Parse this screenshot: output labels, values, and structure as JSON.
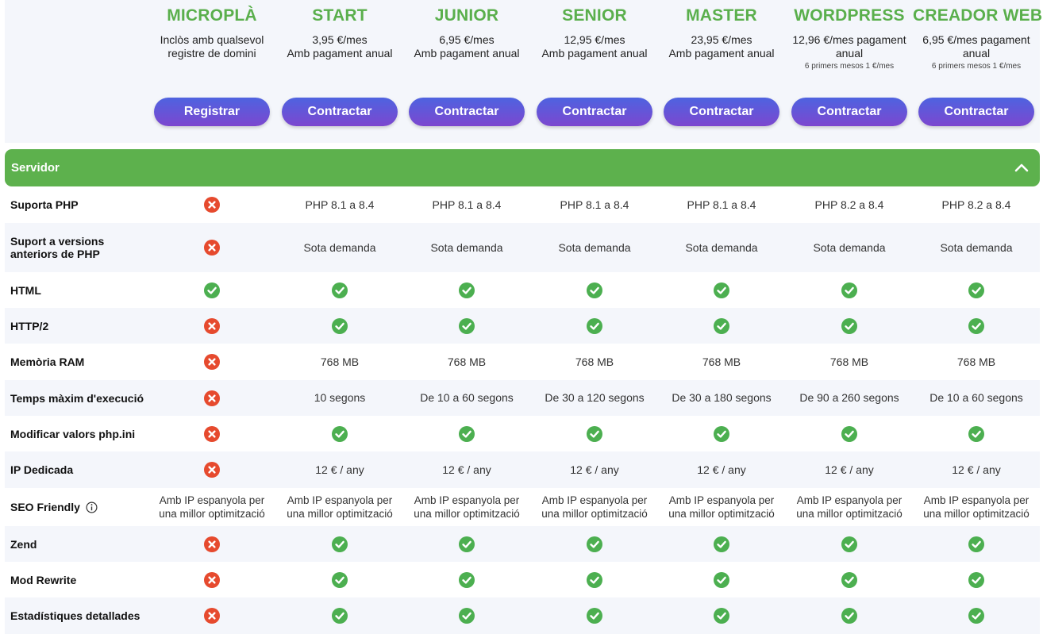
{
  "plans": [
    {
      "name": "MICROPLÀ",
      "price": "Inclòs amb qualsevol",
      "price2": "registre de domini",
      "sub": "",
      "button": "Registrar"
    },
    {
      "name": "START",
      "price": "3,95 €/mes",
      "price2": "Amb pagament anual",
      "sub": "",
      "button": "Contractar"
    },
    {
      "name": "JUNIOR",
      "price": "6,95 €/mes",
      "price2": "Amb pagament anual",
      "sub": "",
      "button": "Contractar"
    },
    {
      "name": "SENIOR",
      "price": "12,95 €/mes",
      "price2": "Amb pagament anual",
      "sub": "",
      "button": "Contractar"
    },
    {
      "name": "MASTER",
      "price": "23,95 €/mes",
      "price2": "Amb pagament anual",
      "sub": "",
      "button": "Contractar"
    },
    {
      "name": "WORDPRESS",
      "price": "12,96 €/mes pagament",
      "price2": "anual",
      "sub": "6 primers mesos 1 €/mes",
      "button": "Contractar"
    },
    {
      "name": "CREADOR WEB",
      "price": "6,95 €/mes pagament",
      "price2": "anual",
      "sub": "6 primers mesos 1 €/mes",
      "button": "Contractar"
    }
  ],
  "section": {
    "title": "Servidor",
    "toggle_icon": "chevron-up-icon"
  },
  "colors": {
    "plan_name": "#5aaf4c",
    "section_bar": "#5db14d",
    "check": "#4caf50",
    "cross": "#e64a2e",
    "button_top": "#4e63e0",
    "button_bottom": "#7c47cf"
  },
  "rows": [
    {
      "label": "Suporta PHP",
      "cells": [
        "x",
        "PHP 8.1 a 8.4",
        "PHP 8.1 a 8.4",
        "PHP 8.1 a 8.4",
        "PHP 8.1 a 8.4",
        "PHP 8.2 a 8.4",
        "PHP 8.2 a 8.4"
      ]
    },
    {
      "label": "Suport a versions anteriors de PHP",
      "cells": [
        "x",
        "Sota demanda",
        "Sota demanda",
        "Sota demanda",
        "Sota demanda",
        "Sota demanda",
        "Sota demanda"
      ]
    },
    {
      "label": "HTML",
      "cells": [
        "check",
        "check",
        "check",
        "check",
        "check",
        "check",
        "check"
      ]
    },
    {
      "label": "HTTP/2",
      "cells": [
        "x",
        "check",
        "check",
        "check",
        "check",
        "check",
        "check"
      ]
    },
    {
      "label": "Memòria RAM",
      "cells": [
        "x",
        "768 MB",
        "768 MB",
        "768 MB",
        "768 MB",
        "768 MB",
        "768 MB"
      ]
    },
    {
      "label": "Temps màxim d'execució",
      "cells": [
        "x",
        "10 segons",
        "De 10 a 60 segons",
        "De 30 a 120 segons",
        "De 30 a 180 segons",
        "De 90 a 260 segons",
        "De 10 a 60 segons"
      ]
    },
    {
      "label": "Modificar valors php.ini",
      "cells": [
        "x",
        "check",
        "check",
        "check",
        "check",
        "check",
        "check"
      ]
    },
    {
      "label": "IP Dedicada",
      "cells": [
        "x",
        "12 € / any",
        "12 € / any",
        "12 € / any",
        "12 € / any",
        "12 € / any",
        "12 € / any"
      ]
    },
    {
      "label": "SEO Friendly",
      "info": true,
      "cells": [
        "Amb IP espanyola per una millor optimització",
        "Amb IP espanyola per una millor optimització",
        "Amb IP espanyola per una millor optimització",
        "Amb IP espanyola per una millor optimització",
        "Amb IP espanyola per una millor optimització",
        "Amb IP espanyola per una millor optimització",
        "Amb IP espanyola per una millor optimització"
      ]
    },
    {
      "label": "Zend",
      "cells": [
        "x",
        "check",
        "check",
        "check",
        "check",
        "check",
        "check"
      ]
    },
    {
      "label": "Mod Rewrite",
      "cells": [
        "x",
        "check",
        "check",
        "check",
        "check",
        "check",
        "check"
      ]
    },
    {
      "label": "Estadístiques detallades",
      "cells": [
        "x",
        "check",
        "check",
        "check",
        "check",
        "check",
        "check"
      ]
    }
  ]
}
